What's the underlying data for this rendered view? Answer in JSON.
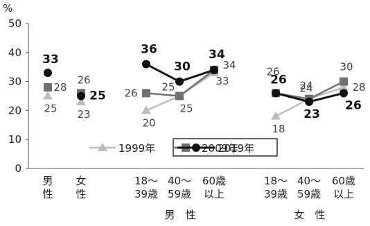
{
  "chart_data": {
    "type": "line",
    "unit": "%",
    "ylim": [
      0,
      50
    ],
    "yticks": [
      "0",
      "10",
      "20",
      "30",
      "40",
      "50"
    ],
    "categories": [
      {
        "id": "total-male",
        "lines": [
          "男",
          "性"
        ]
      },
      {
        "id": "total-female",
        "lines": [
          "女",
          "性"
        ]
      },
      {
        "id": "m-18-39",
        "lines": [
          "18〜",
          "39歳"
        ]
      },
      {
        "id": "m-40-59",
        "lines": [
          "40〜",
          "59歳"
        ]
      },
      {
        "id": "m-60",
        "lines": [
          "60歳",
          "以上"
        ]
      },
      {
        "id": "f-18-39",
        "lines": [
          "18〜",
          "39歳"
        ]
      },
      {
        "id": "f-40-59",
        "lines": [
          "40〜",
          "59歳"
        ]
      },
      {
        "id": "f-60",
        "lines": [
          "60歳",
          "以上"
        ]
      }
    ],
    "groups": [
      {
        "label": "男　性",
        "categories": [
          2,
          3,
          4
        ]
      },
      {
        "label": "女　性",
        "categories": [
          5,
          6,
          7
        ]
      }
    ],
    "series": [
      {
        "name": "1999年",
        "color": "#bdbdbd",
        "marker": "triangle",
        "values": [
          25,
          23,
          20,
          25,
          33,
          18,
          24,
          28
        ]
      },
      {
        "name": "2009年",
        "color": "#707070",
        "marker": "square",
        "values": [
          28,
          26,
          26,
          25,
          34,
          26,
          24,
          30
        ]
      },
      {
        "name": "2019年",
        "color": "#111111",
        "marker": "circle",
        "values": [
          33,
          25,
          36,
          30,
          34,
          26,
          23,
          26
        ]
      }
    ],
    "legend_position": "bottom-right",
    "grid": false
  }
}
